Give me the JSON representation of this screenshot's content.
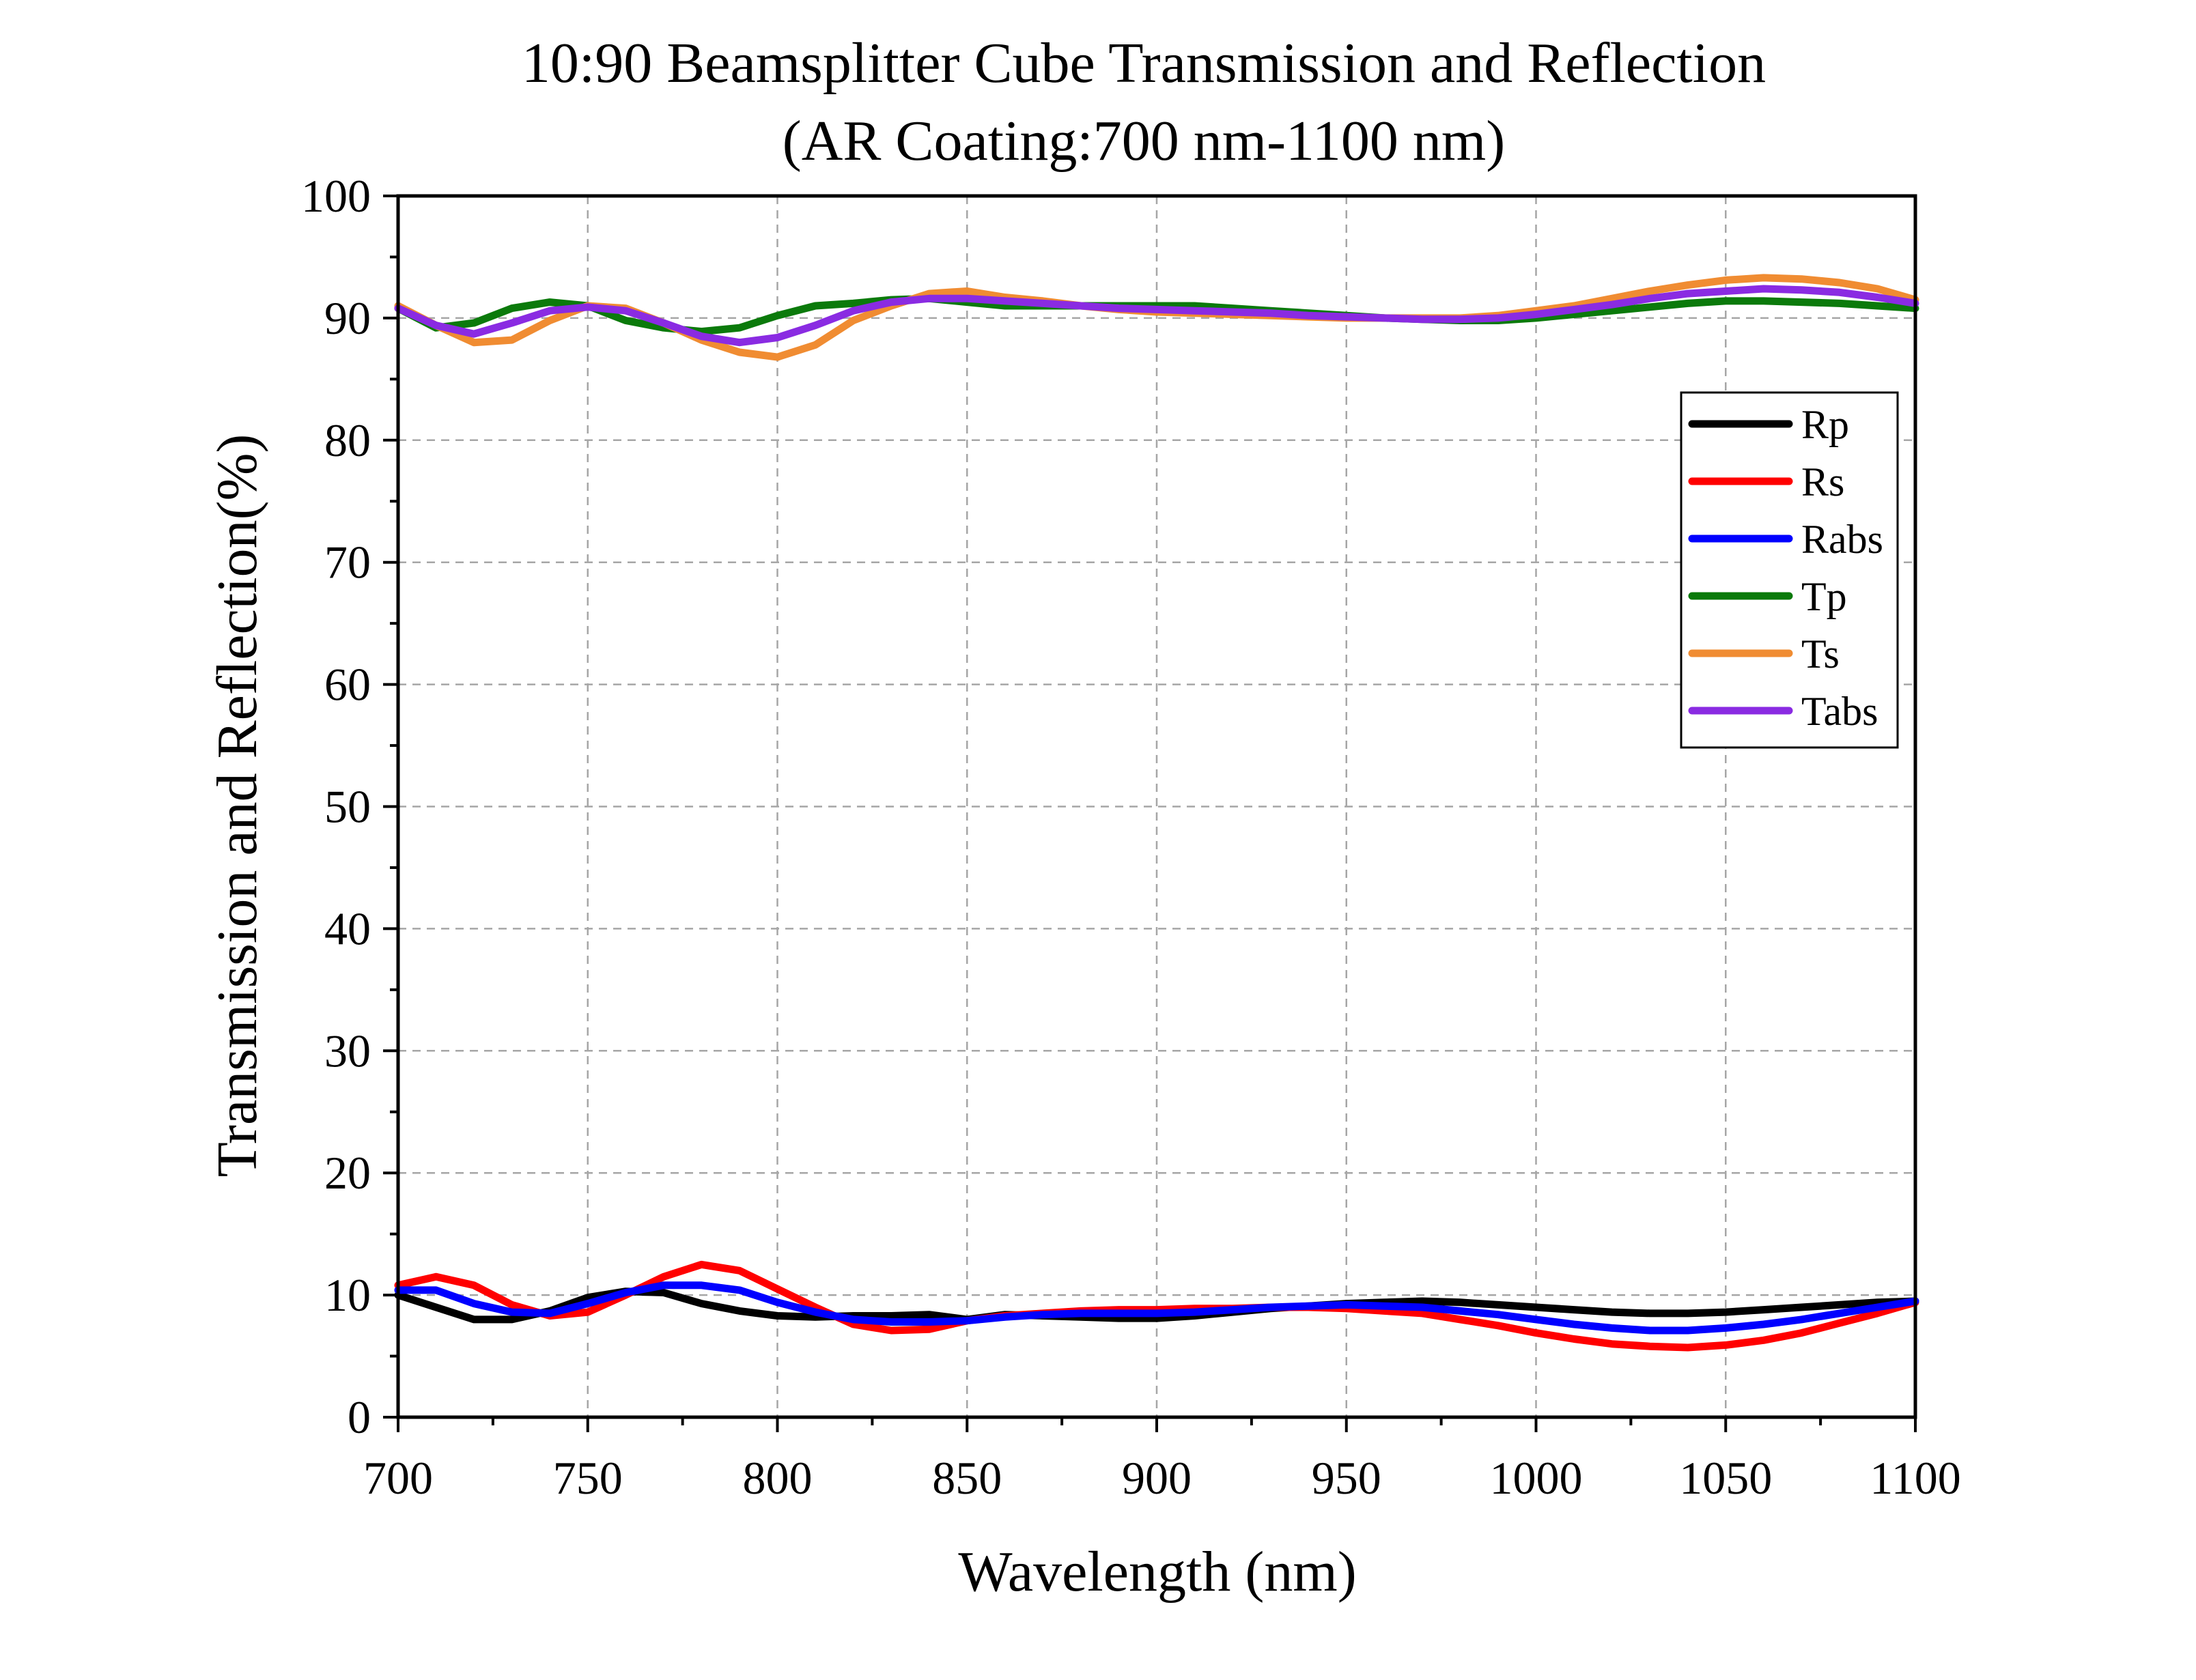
{
  "chart_data": {
    "type": "line",
    "title": [
      "10:90 Beamsplitter Cube Transmission and Reflection",
      "(AR Coating:700 nm-1100 nm)"
    ],
    "xlabel": "Wavelength (nm)",
    "ylabel": "Transmission and Reflection(%)",
    "xlim": [
      700,
      1100
    ],
    "ylim": [
      0,
      100
    ],
    "xticks": [
      700,
      750,
      800,
      850,
      900,
      950,
      1000,
      1050,
      1100
    ],
    "yticks": [
      0,
      10,
      20,
      30,
      40,
      50,
      60,
      70,
      80,
      90,
      100
    ],
    "grid": true,
    "legend_position": "upper-right",
    "x": [
      700,
      710,
      720,
      730,
      740,
      750,
      760,
      770,
      780,
      790,
      800,
      810,
      820,
      830,
      840,
      850,
      860,
      870,
      880,
      890,
      900,
      910,
      920,
      930,
      940,
      950,
      960,
      970,
      980,
      990,
      1000,
      1010,
      1020,
      1030,
      1040,
      1050,
      1060,
      1070,
      1080,
      1090,
      1100
    ],
    "series": [
      {
        "name": "Rp",
        "color": "#000000",
        "values": [
          10.0,
          9.0,
          8.0,
          8.0,
          8.7,
          9.8,
          10.3,
          10.2,
          9.3,
          8.7,
          8.3,
          8.2,
          8.3,
          8.3,
          8.4,
          8.0,
          8.4,
          8.3,
          8.2,
          8.1,
          8.1,
          8.3,
          8.6,
          8.9,
          9.1,
          9.3,
          9.4,
          9.5,
          9.4,
          9.2,
          9.0,
          8.8,
          8.6,
          8.5,
          8.5,
          8.6,
          8.8,
          9.0,
          9.2,
          9.4,
          9.5
        ]
      },
      {
        "name": "Rs",
        "color": "#ff0000",
        "values": [
          10.8,
          11.5,
          10.8,
          9.2,
          8.3,
          8.6,
          10.0,
          11.5,
          12.5,
          12.0,
          10.5,
          9.0,
          7.6,
          7.1,
          7.2,
          7.9,
          8.3,
          8.5,
          8.7,
          8.8,
          8.8,
          8.9,
          8.9,
          9.0,
          9.0,
          8.9,
          8.7,
          8.5,
          8.0,
          7.5,
          6.9,
          6.4,
          6.0,
          5.8,
          5.7,
          5.9,
          6.3,
          6.9,
          7.7,
          8.5,
          9.4
        ]
      },
      {
        "name": "Rabs",
        "color": "#0000ff",
        "values": [
          10.4,
          10.4,
          9.3,
          8.6,
          8.5,
          9.3,
          10.2,
          10.8,
          10.8,
          10.4,
          9.4,
          8.6,
          8.0,
          7.8,
          7.8,
          7.9,
          8.2,
          8.4,
          8.5,
          8.5,
          8.5,
          8.6,
          8.8,
          9.0,
          9.1,
          9.2,
          9.1,
          9.0,
          8.7,
          8.4,
          8.0,
          7.6,
          7.3,
          7.1,
          7.1,
          7.3,
          7.6,
          8.0,
          8.5,
          9.0,
          9.5
        ]
      },
      {
        "name": "Tp",
        "color": "#0b7a0b",
        "values": [
          90.8,
          89.2,
          89.6,
          90.8,
          91.3,
          91.0,
          89.8,
          89.2,
          88.9,
          89.2,
          90.2,
          91.0,
          91.2,
          91.5,
          91.6,
          91.3,
          91.0,
          91.0,
          91.0,
          91.0,
          91.0,
          91.0,
          90.8,
          90.6,
          90.4,
          90.2,
          90.0,
          89.9,
          89.8,
          89.8,
          90.0,
          90.3,
          90.6,
          90.9,
          91.2,
          91.4,
          91.4,
          91.3,
          91.2,
          91.0,
          90.8
        ]
      },
      {
        "name": "Ts",
        "color": "#f08c32",
        "values": [
          91.0,
          89.4,
          88.0,
          88.2,
          89.8,
          91.0,
          90.8,
          89.6,
          88.2,
          87.2,
          86.8,
          87.8,
          89.8,
          91.0,
          92.0,
          92.2,
          91.7,
          91.4,
          91.0,
          90.7,
          90.5,
          90.4,
          90.3,
          90.2,
          90.1,
          90.0,
          90.0,
          90.0,
          90.0,
          90.2,
          90.6,
          91.0,
          91.6,
          92.2,
          92.7,
          93.1,
          93.3,
          93.2,
          92.9,
          92.4,
          91.5
        ]
      },
      {
        "name": "Tabs",
        "color": "#8a2be2",
        "values": [
          90.8,
          89.4,
          88.7,
          89.6,
          90.6,
          90.9,
          90.6,
          89.6,
          88.5,
          88.0,
          88.4,
          89.4,
          90.6,
          91.3,
          91.6,
          91.6,
          91.4,
          91.2,
          91.0,
          90.8,
          90.7,
          90.6,
          90.5,
          90.4,
          90.2,
          90.1,
          90.0,
          89.9,
          89.9,
          90.0,
          90.3,
          90.7,
          91.1,
          91.6,
          92.0,
          92.2,
          92.4,
          92.3,
          92.1,
          91.7,
          91.2
        ]
      }
    ]
  }
}
